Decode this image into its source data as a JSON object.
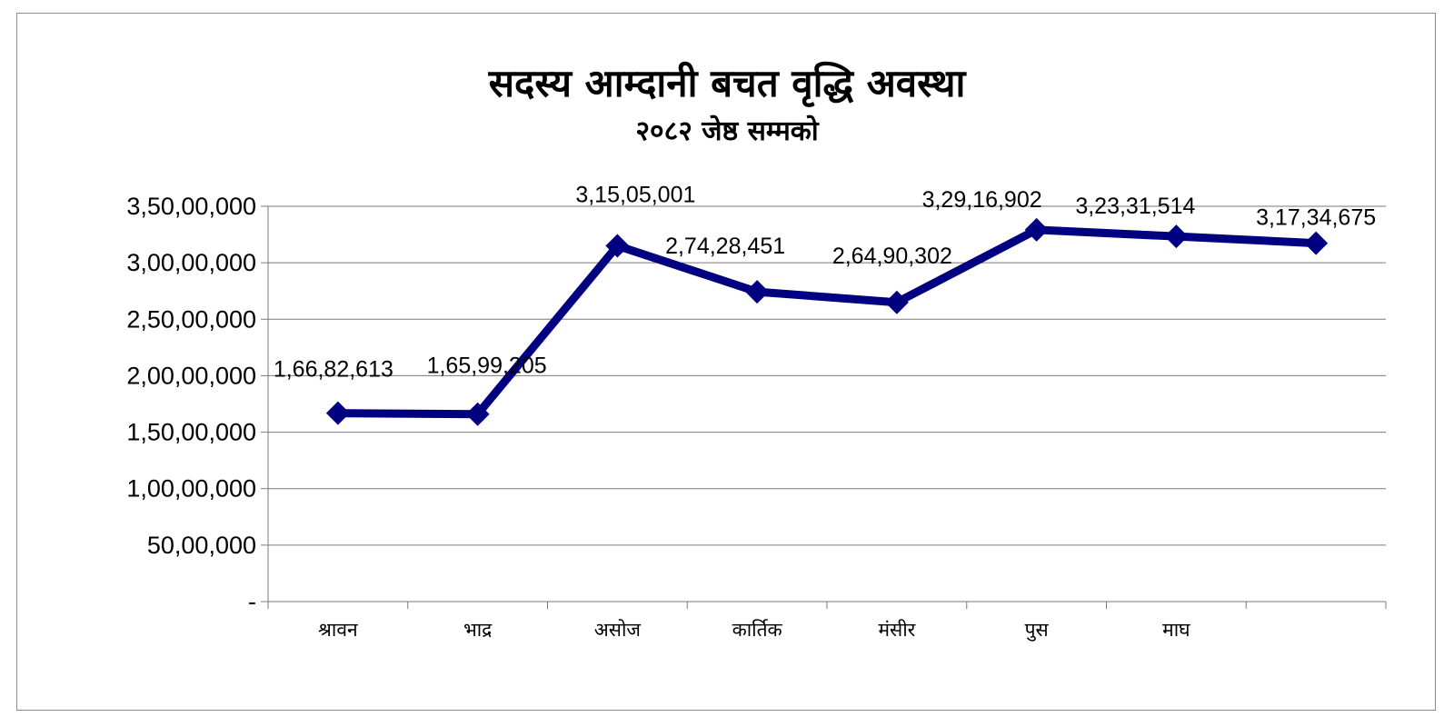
{
  "chart_data": {
    "type": "line",
    "title": "सदस्य आम्दानी बचत वृद्धि अवस्था",
    "subtitle": "२०८२ जेष्ठ सम्मको",
    "xlabel": "",
    "ylabel": "",
    "categories": [
      "श्रावन",
      "भाद्र",
      "असोज",
      "कार्तिक",
      "मंसीर",
      "पुस",
      "माघ",
      ""
    ],
    "series": [
      {
        "values": [
          16682613,
          16599205,
          31505001,
          27428451,
          26490302,
          32916902,
          32331514,
          31734675
        ],
        "data_labels": [
          "1,66,82,613",
          "1,65,99,205",
          "3,15,05,001",
          "2,74,28,451",
          "2,64,90,302",
          "3,29,16,902",
          "3,23,31,514",
          "3,17,34,675"
        ],
        "color": "#000080",
        "marker": "diamond"
      }
    ],
    "ylim": [
      0,
      35000000
    ],
    "yticks": [
      0,
      5000000,
      10000000,
      15000000,
      20000000,
      25000000,
      30000000,
      35000000
    ],
    "ytick_labels": [
      "-",
      "50,00,000",
      "1,00,00,000",
      "1,50,00,000",
      "2,00,00,000",
      "2,50,00,000",
      "3,00,00,000",
      "3,50,00,000"
    ],
    "grid": true,
    "legend": "none"
  }
}
